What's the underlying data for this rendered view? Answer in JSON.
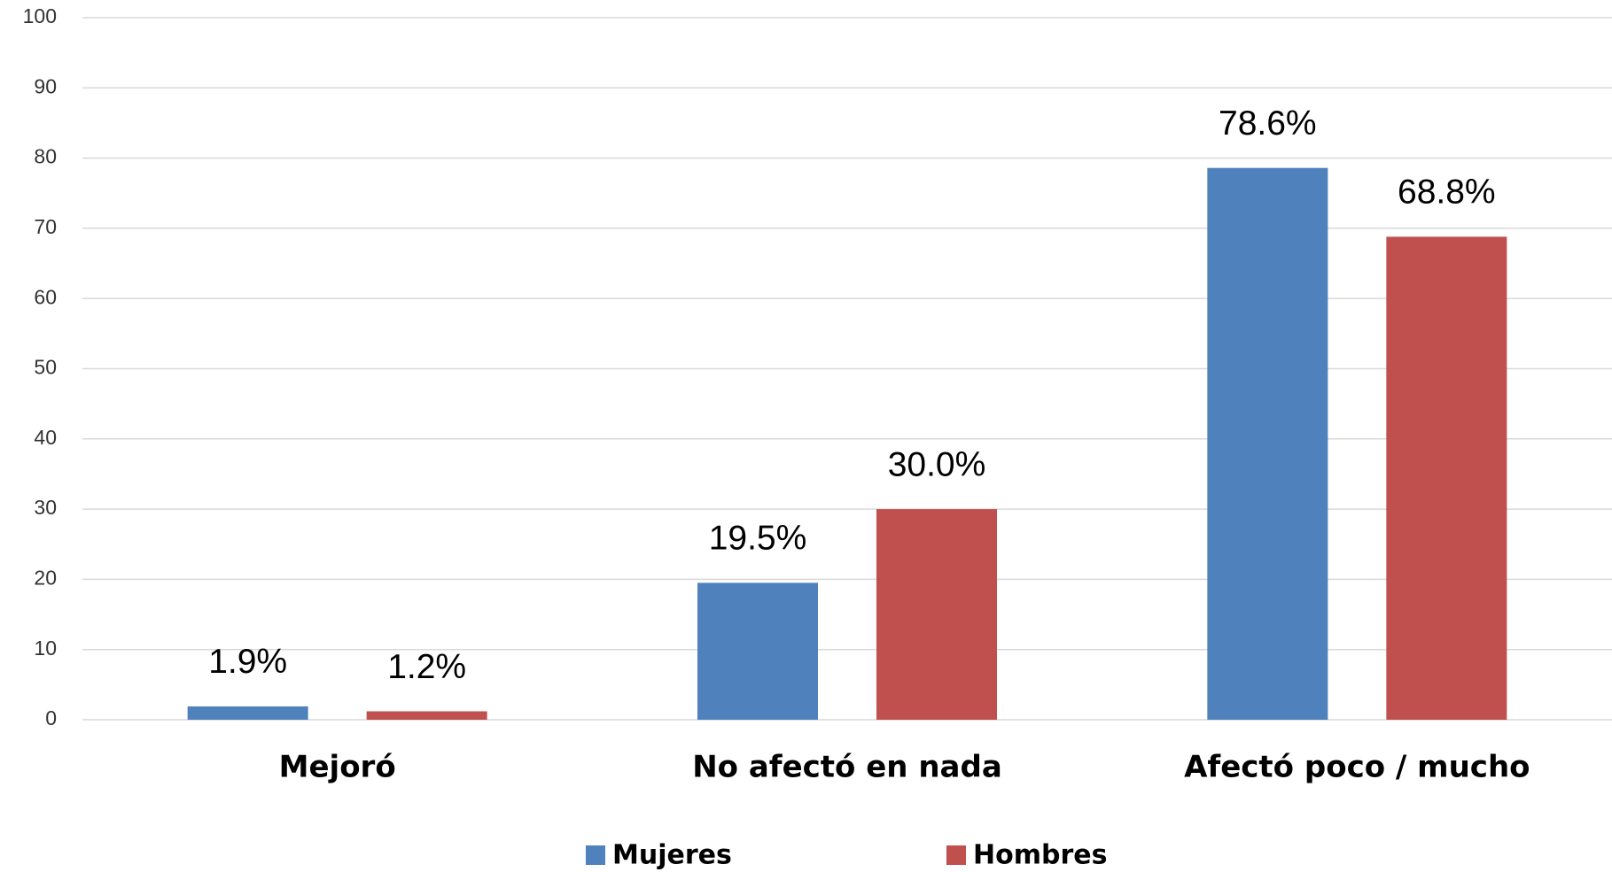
{
  "chart_data": {
    "type": "bar",
    "categories": [
      "Mejoró",
      "No afectó en nada",
      "Afectó poco / mucho"
    ],
    "series": [
      {
        "name": "Mujeres",
        "color": "#4f81bd",
        "values": [
          1.9,
          19.5,
          78.6
        ],
        "value_labels": [
          "1.9%",
          "19.5%",
          "78.6%"
        ]
      },
      {
        "name": "Hombres",
        "color": "#c0504d",
        "values": [
          1.2,
          30.0,
          68.8
        ],
        "value_labels": [
          "1.2%",
          "30.0%",
          "68.8%"
        ]
      }
    ],
    "ylim": [
      0,
      100
    ],
    "yticks": [
      0,
      10,
      20,
      30,
      40,
      50,
      60,
      70,
      80,
      90,
      100
    ],
    "grid": true,
    "legend": "bottom"
  }
}
